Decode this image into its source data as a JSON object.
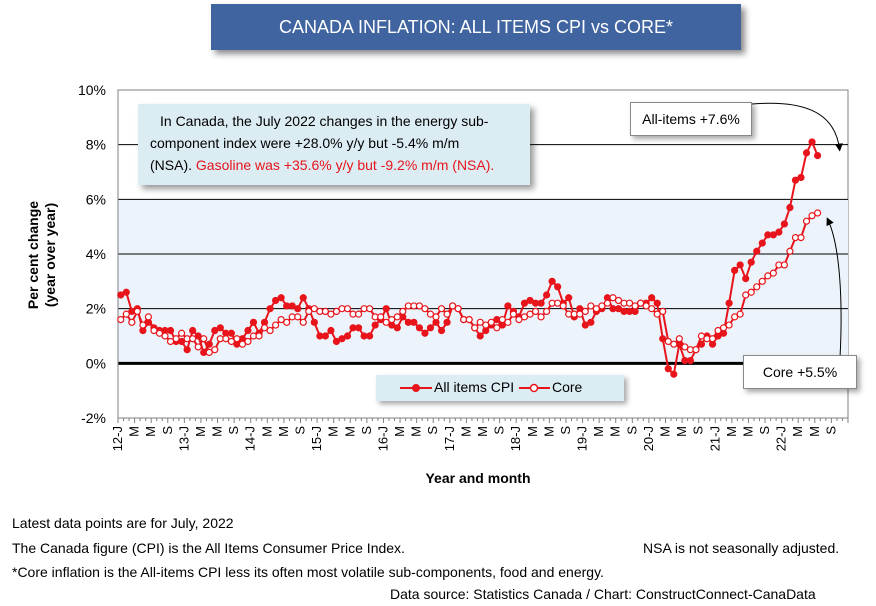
{
  "title": "CANADA INFLATION: ALL ITEMS CPI vs CORE*",
  "annotation": {
    "line1": "In Canada, the July 2022 changes in the energy sub-",
    "line2": "component index were +28.0% y/y but -5.4% m/m",
    "line3a": "(NSA). ",
    "line3b": "Gasoline was +35.6% y/y but -9.2% m/m (NSA).",
    "highlight_color": "#e8141b"
  },
  "callouts": {
    "all_items": "All-items +7.6%",
    "core": "Core +5.5%"
  },
  "footer": {
    "latest": "Latest data points are for July, 2022",
    "cpi_def": "The Canada figure (CPI) is the All Items Consumer Price Index.",
    "nsa": "NSA is not seasonally adjusted.",
    "core_def": "*Core inflation is the All-items CPI less its often most volatile sub-components, food and energy.",
    "source": "Data source: Statistics Canada / Chart: ConstructConnect-CanaData"
  },
  "chart_data": {
    "type": "line",
    "title": "CANADA INFLATION: ALL ITEMS CPI vs CORE*",
    "xlabel": "Year and month",
    "ylabel": [
      "Per cent change",
      "(year over year)"
    ],
    "ylim": [
      -2,
      10
    ],
    "yticks": [
      -2,
      0,
      2,
      4,
      6,
      8,
      10
    ],
    "ytick_labels": [
      "-2%",
      "0%",
      "2%",
      "4%",
      "6%",
      "8%",
      "10%"
    ],
    "xtick_labels": [
      "12-J",
      "M",
      "M",
      "S",
      "13-J",
      "M",
      "M",
      "S",
      "14-J",
      "M",
      "M",
      "S",
      "15-J",
      "M",
      "M",
      "S",
      "16-J",
      "M",
      "M",
      "S",
      "17-J",
      "M",
      "M",
      "S",
      "18-J",
      "M",
      "M",
      "S",
      "19-J",
      "M",
      "M",
      "S",
      "20-J",
      "M",
      "M",
      "S",
      "21-J",
      "M",
      "M",
      "S",
      "22-J",
      "M",
      "M",
      "S"
    ],
    "x_start": "2012-01",
    "x_end": "2022-07",
    "grid": "horizontal",
    "legend_position": "bottom-center",
    "series": [
      {
        "name": "All items CPI",
        "color": "#e8141b",
        "marker": "filled-circle",
        "values": [
          2.5,
          2.6,
          1.9,
          2.0,
          1.2,
          1.5,
          1.3,
          1.2,
          1.2,
          1.2,
          0.8,
          0.8,
          0.5,
          1.2,
          1.0,
          0.4,
          0.7,
          1.2,
          1.3,
          1.1,
          1.1,
          0.7,
          0.9,
          1.2,
          1.5,
          1.1,
          1.5,
          2.0,
          2.3,
          2.4,
          2.1,
          2.1,
          2.0,
          2.4,
          2.0,
          1.5,
          1.0,
          1.0,
          1.2,
          0.8,
          0.9,
          1.0,
          1.3,
          1.3,
          1.0,
          1.0,
          1.4,
          1.6,
          2.0,
          1.4,
          1.3,
          1.7,
          1.5,
          1.5,
          1.3,
          1.1,
          1.3,
          1.5,
          1.2,
          1.5,
          2.1,
          2.0,
          1.6,
          1.6,
          1.3,
          1.0,
          1.2,
          1.4,
          1.6,
          1.4,
          2.1,
          1.9,
          1.7,
          2.2,
          2.3,
          2.2,
          2.2,
          2.5,
          3.0,
          2.8,
          2.2,
          2.4,
          1.7,
          2.0,
          1.4,
          1.5,
          1.9,
          2.0,
          2.4,
          2.0,
          2.0,
          1.9,
          1.9,
          1.9,
          2.2,
          2.2,
          2.4,
          2.2,
          0.9,
          -0.2,
          -0.4,
          0.7,
          0.1,
          0.1,
          0.5,
          0.7,
          1.0,
          0.7,
          1.0,
          1.1,
          2.2,
          3.4,
          3.6,
          3.1,
          3.7,
          4.1,
          4.4,
          4.7,
          4.7,
          4.8,
          5.1,
          5.7,
          6.7,
          6.8,
          7.7,
          8.1,
          7.6
        ]
      },
      {
        "name": "Core",
        "color": "#e8141b",
        "marker": "open-circle",
        "values": [
          1.6,
          1.8,
          1.5,
          1.9,
          1.4,
          1.7,
          1.2,
          1.1,
          1.0,
          0.8,
          0.9,
          1.1,
          0.9,
          0.9,
          0.6,
          0.9,
          0.4,
          0.5,
          0.9,
          0.9,
          0.8,
          0.9,
          0.7,
          0.8,
          1.0,
          1.0,
          1.3,
          1.2,
          1.4,
          1.6,
          1.5,
          1.7,
          1.7,
          1.5,
          1.9,
          2.0,
          1.9,
          1.9,
          1.8,
          1.9,
          2.0,
          2.0,
          1.8,
          1.8,
          2.0,
          2.0,
          1.7,
          1.7,
          1.5,
          1.6,
          1.7,
          1.9,
          2.1,
          2.1,
          2.1,
          2.0,
          1.8,
          1.7,
          2.0,
          1.8,
          2.1,
          2.0,
          1.6,
          1.6,
          1.3,
          1.5,
          1.4,
          1.5,
          1.3,
          1.6,
          1.5,
          1.8,
          1.6,
          1.7,
          1.8,
          1.9,
          1.7,
          1.9,
          2.2,
          2.2,
          2.1,
          1.8,
          1.8,
          1.8,
          1.9,
          2.1,
          2.0,
          2.1,
          2.2,
          2.4,
          2.3,
          2.2,
          2.2,
          2.1,
          2.2,
          2.1,
          2.0,
          1.8,
          1.9,
          0.8,
          0.7,
          0.9,
          0.6,
          0.5,
          0.5,
          1.0,
          0.9,
          0.9,
          1.2,
          1.3,
          1.4,
          1.7,
          1.8,
          2.5,
          2.6,
          2.8,
          3.0,
          3.2,
          3.3,
          3.6,
          3.6,
          4.1,
          4.6,
          4.6,
          5.2,
          5.4,
          5.5
        ]
      }
    ]
  }
}
